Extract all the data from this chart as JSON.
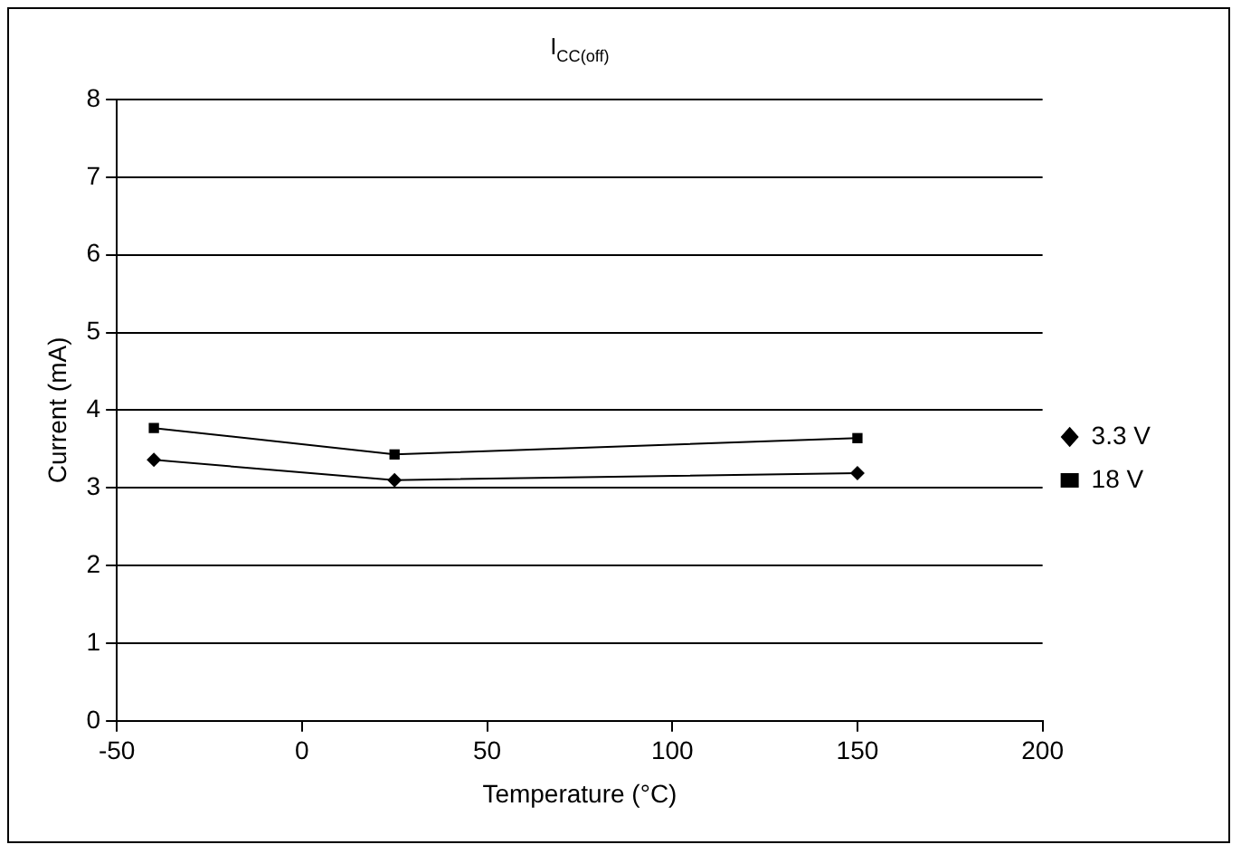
{
  "chart_data": {
    "type": "line",
    "title": "I$_{CC(off)}$",
    "xlabel": "Temperature (°C)",
    "ylabel": "Current (mA)",
    "x": [
      -40,
      25,
      150
    ],
    "series": [
      {
        "name": "3.3 V",
        "color": "#000000",
        "values": [
          3.36,
          3.1,
          3.19
        ],
        "marker": "diamond"
      },
      {
        "name": "18 V",
        "color": "#000000",
        "values": [
          3.77,
          3.43,
          3.64
        ],
        "marker": "square"
      }
    ],
    "xlim": [
      -50,
      200
    ],
    "xticks": [
      -50,
      0,
      50,
      100,
      150,
      200
    ],
    "ylim": [
      0,
      8
    ],
    "yticks": [
      0,
      1,
      2,
      3,
      4,
      5,
      6,
      7,
      8
    ],
    "grid": "y",
    "legend": "right",
    "line_style": "solid"
  }
}
